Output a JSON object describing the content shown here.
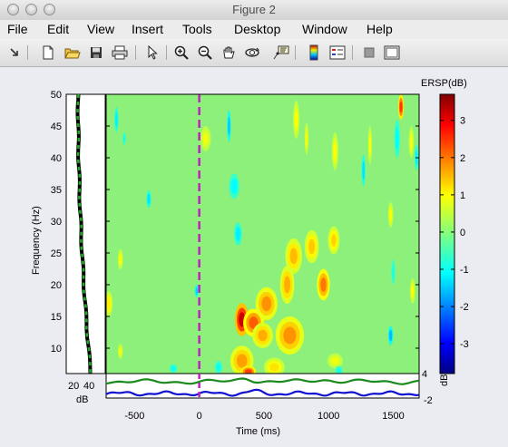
{
  "window": {
    "title": "Figure 2"
  },
  "menu": [
    "File",
    "Edit",
    "View",
    "Insert",
    "Tools",
    "Desktop",
    "Window",
    "Help"
  ],
  "toolbar": [
    {
      "icon": "arrow-icon"
    },
    {
      "icon": "new-file-icon"
    },
    {
      "icon": "open-folder-icon"
    },
    {
      "icon": "save-icon"
    },
    {
      "icon": "print-icon"
    },
    {
      "icon": "pointer-icon"
    },
    {
      "icon": "zoom-in-icon"
    },
    {
      "icon": "zoom-out-icon"
    },
    {
      "icon": "pan-hand-icon"
    },
    {
      "icon": "rotate-3d-icon"
    },
    {
      "icon": "data-cursor-icon"
    },
    {
      "icon": "colorbar-icon"
    },
    {
      "icon": "legend-icon"
    },
    {
      "icon": "hide-plot-tools-icon"
    },
    {
      "icon": "show-plot-tools-icon"
    }
  ],
  "colors": {
    "background_green": "#8cf07a",
    "event_line": "#c020c0",
    "upper_trace": "#1a8a1a",
    "lower_trace": "#1010d0"
  },
  "chart_data": [
    {
      "type": "heatmap",
      "title": "",
      "xlabel": "Time (ms)",
      "ylabel": "Frequency (Hz)",
      "xlim": [
        -720,
        1700
      ],
      "ylim": [
        6,
        50
      ],
      "xticks": [
        -500,
        0,
        500,
        1000,
        1500
      ],
      "yticks": [
        10,
        15,
        20,
        25,
        30,
        35,
        40,
        45,
        50
      ],
      "event_line_x": 0,
      "colorbar": {
        "label": "ERSP(dB)",
        "unit": "dB",
        "range": [
          -3.8,
          3.7
        ],
        "ticks": [
          -3,
          -2,
          -1,
          0,
          1,
          2,
          3
        ]
      },
      "blobs": [
        {
          "t": 330,
          "f": 14.5,
          "dt": 55,
          "df": 2.6,
          "value": 3.2
        },
        {
          "t": 420,
          "f": 14.0,
          "dt": 80,
          "df": 2.2,
          "value": 2.2
        },
        {
          "t": 520,
          "f": 17.0,
          "dt": 85,
          "df": 2.6,
          "value": 1.8
        },
        {
          "t": 330,
          "f": 8.0,
          "dt": 90,
          "df": 2.4,
          "value": 1.7
        },
        {
          "t": 490,
          "f": 12.0,
          "dt": 80,
          "df": 2.0,
          "value": 1.6
        },
        {
          "t": 700,
          "f": 12.0,
          "dt": 110,
          "df": 3.0,
          "value": 1.8
        },
        {
          "t": 680,
          "f": 20.0,
          "dt": 55,
          "df": 3.0,
          "value": 1.6
        },
        {
          "t": 730,
          "f": 24.5,
          "dt": 65,
          "df": 2.8,
          "value": 1.5
        },
        {
          "t": 870,
          "f": 26.0,
          "dt": 55,
          "df": 2.6,
          "value": 1.4
        },
        {
          "t": 960,
          "f": 20.0,
          "dt": 50,
          "df": 2.5,
          "value": 2.0
        },
        {
          "t": 1040,
          "f": 27.0,
          "dt": 45,
          "df": 2.2,
          "value": 1.3
        },
        {
          "t": 580,
          "f": 7.0,
          "dt": 80,
          "df": 1.5,
          "value": 1.2
        },
        {
          "t": 380,
          "f": 6.3,
          "dt": 60,
          "df": 0.9,
          "value": 2.4
        },
        {
          "t": -700,
          "f": 17.0,
          "dt": 30,
          "df": 2.0,
          "value": 1.1
        },
        {
          "t": -610,
          "f": 24.0,
          "dt": 20,
          "df": 1.6,
          "value": 1.0
        },
        {
          "t": -610,
          "f": 9.5,
          "dt": 20,
          "df": 1.2,
          "value": 0.9
        },
        {
          "t": 1560,
          "f": 48.0,
          "dt": 22,
          "df": 2.0,
          "value": 2.5
        },
        {
          "t": 1650,
          "f": 19.0,
          "dt": 20,
          "df": 2.0,
          "value": 1.0
        },
        {
          "t": 750,
          "f": 46.0,
          "dt": 25,
          "df": 3.0,
          "value": 1.0
        },
        {
          "t": 830,
          "f": 43.0,
          "dt": 15,
          "df": 2.5,
          "value": 1.0
        },
        {
          "t": 1050,
          "f": 41.0,
          "dt": 25,
          "df": 3.0,
          "value": 1.0
        },
        {
          "t": 1320,
          "f": 42.0,
          "dt": 15,
          "df": 3.0,
          "value": 1.0
        },
        {
          "t": 1480,
          "f": 31.0,
          "dt": 20,
          "df": 2.0,
          "value": 1.0
        },
        {
          "t": 1640,
          "f": 42.5,
          "dt": 20,
          "df": 2.5,
          "value": 0.9
        },
        {
          "t": 50,
          "f": 43.0,
          "dt": 40,
          "df": 2.0,
          "value": 0.9
        },
        {
          "t": 1050,
          "f": 8.0,
          "dt": 60,
          "df": 1.2,
          "value": 0.9
        },
        {
          "t": -640,
          "f": 46.0,
          "dt": 15,
          "df": 2.0,
          "value": -1.2
        },
        {
          "t": -580,
          "f": 43.0,
          "dt": 12,
          "df": 1.0,
          "value": -1.0
        },
        {
          "t": -390,
          "f": 33.5,
          "dt": 18,
          "df": 1.4,
          "value": -1.3
        },
        {
          "t": 270,
          "f": 35.5,
          "dt": 40,
          "df": 2.0,
          "value": -1.1
        },
        {
          "t": 300,
          "f": 28.0,
          "dt": 30,
          "df": 1.8,
          "value": -1.2
        },
        {
          "t": 230,
          "f": 45.0,
          "dt": 15,
          "df": 2.5,
          "value": -1.5
        },
        {
          "t": 1270,
          "f": 38.0,
          "dt": 15,
          "df": 2.5,
          "value": -1.3
        },
        {
          "t": 1530,
          "f": 43.0,
          "dt": 22,
          "df": 3.0,
          "value": -1.1
        },
        {
          "t": 1500,
          "f": 22.0,
          "dt": 15,
          "df": 2.0,
          "value": -0.9
        },
        {
          "t": 1480,
          "f": 12.0,
          "dt": 20,
          "df": 1.5,
          "value": -1.6
        },
        {
          "t": 1680,
          "f": 40.0,
          "dt": 15,
          "df": 2.0,
          "value": -1.2
        },
        {
          "t": -20,
          "f": 19.0,
          "dt": 15,
          "df": 1.0,
          "value": -1.4
        },
        {
          "t": 150,
          "f": 7.0,
          "dt": 30,
          "df": 1.0,
          "value": -1.0
        },
        {
          "t": -200,
          "f": 6.8,
          "dt": 30,
          "df": 0.7,
          "value": -1.0
        },
        {
          "t": 1080,
          "f": 6.5,
          "dt": 30,
          "df": 0.7,
          "value": -0.9
        }
      ]
    },
    {
      "type": "line",
      "title": "",
      "xlabel": "dB",
      "xticks": [
        20,
        40
      ],
      "ylim": [
        6,
        50
      ],
      "series": [
        {
          "values": []
        }
      ]
    },
    {
      "type": "line",
      "title": "",
      "ylim": [
        -2,
        4
      ],
      "yticks": [
        -2,
        4
      ],
      "xlim": [
        -720,
        1700
      ],
      "series": [
        {
          "values": []
        },
        {
          "values": []
        }
      ]
    }
  ]
}
